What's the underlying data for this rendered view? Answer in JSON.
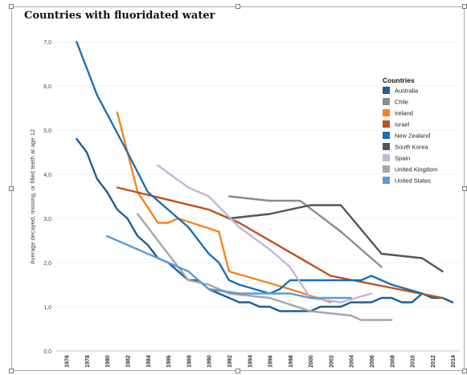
{
  "chart_data": {
    "type": "line",
    "title": "Countries with fluoridated water",
    "ylabel": "Average decayed, missing, or filled teeth at age 12",
    "xlabel": "",
    "xlim": [
      1975,
      2014
    ],
    "ylim": [
      0,
      7
    ],
    "y_ticks": [
      "0,0",
      "1,0",
      "2,0",
      "3,0",
      "4,0",
      "5,0",
      "6,0",
      "7,0"
    ],
    "x_ticks": [
      "1976",
      "1978",
      "1980",
      "1982",
      "1984",
      "1986",
      "1988",
      "1990",
      "1992",
      "1994",
      "1996",
      "1998",
      "2000",
      "2002",
      "2004",
      "2006",
      "2008",
      "2010",
      "2012",
      "2014"
    ],
    "grid": "horizontal",
    "legend": {
      "title": "Countries",
      "placement": "right"
    },
    "series": [
      {
        "name": "Australia",
        "color": "#1f5e98",
        "points": [
          [
            1977,
            4.8
          ],
          [
            1978,
            4.5
          ],
          [
            1979,
            3.9
          ],
          [
            1980,
            3.6
          ],
          [
            1981,
            3.2
          ],
          [
            1982,
            3.0
          ],
          [
            1983,
            2.6
          ],
          [
            1984,
            2.4
          ],
          [
            1985,
            2.1
          ],
          [
            1986,
            2.0
          ],
          [
            1987,
            1.8
          ],
          [
            1988,
            1.6
          ],
          [
            1989,
            1.6
          ],
          [
            1990,
            1.4
          ],
          [
            1991,
            1.3
          ],
          [
            1992,
            1.2
          ],
          [
            1993,
            1.1
          ],
          [
            1994,
            1.1
          ],
          [
            1995,
            1.0
          ],
          [
            1996,
            1.0
          ],
          [
            1997,
            0.9
          ],
          [
            1998,
            0.9
          ],
          [
            1999,
            0.9
          ],
          [
            2000,
            0.9
          ],
          [
            2001,
            1.0
          ],
          [
            2002,
            1.0
          ],
          [
            2003,
            1.0
          ],
          [
            2004,
            1.1
          ],
          [
            2005,
            1.1
          ],
          [
            2006,
            1.1
          ],
          [
            2007,
            1.2
          ],
          [
            2008,
            1.2
          ],
          [
            2009,
            1.1
          ],
          [
            2010,
            1.1
          ],
          [
            2011,
            1.3
          ],
          [
            2012,
            1.2
          ],
          [
            2013,
            1.2
          ],
          [
            2014,
            1.1
          ]
        ]
      },
      {
        "name": "Chile",
        "color": "#8c8c8c",
        "points": [
          [
            1992,
            3.5
          ],
          [
            1996,
            3.4
          ],
          [
            1999,
            3.4
          ],
          [
            2003,
            2.7
          ],
          [
            2007,
            1.9
          ]
        ]
      },
      {
        "name": "Ireland",
        "color": "#f58220",
        "points": [
          [
            1981,
            5.4
          ],
          [
            1983,
            3.6
          ],
          [
            1985,
            2.9
          ],
          [
            1986,
            2.9
          ],
          [
            1987,
            3.0
          ],
          [
            1991,
            2.7
          ],
          [
            1992,
            1.8
          ],
          [
            1998,
            1.4
          ],
          [
            2002,
            1.1
          ]
        ]
      },
      {
        "name": "Israel",
        "color": "#c0501a",
        "points": [
          [
            1981,
            3.7
          ],
          [
            1990,
            3.2
          ],
          [
            1993,
            2.9
          ],
          [
            2002,
            1.7
          ],
          [
            2013,
            1.2
          ]
        ]
      },
      {
        "name": "New Zealand",
        "color": "#1a6fb5",
        "points": [
          [
            1977,
            7.0
          ],
          [
            1979,
            5.8
          ],
          [
            1982,
            4.5
          ],
          [
            1984,
            3.6
          ],
          [
            1986,
            3.2
          ],
          [
            1988,
            2.8
          ],
          [
            1990,
            2.2
          ],
          [
            1991,
            2.0
          ],
          [
            1992,
            1.6
          ],
          [
            1993,
            1.5
          ],
          [
            1996,
            1.3
          ],
          [
            1997,
            1.4
          ],
          [
            1998,
            1.6
          ],
          [
            2000,
            1.6
          ],
          [
            2005,
            1.6
          ],
          [
            2006,
            1.7
          ],
          [
            2008,
            1.5
          ],
          [
            2011,
            1.3
          ]
        ]
      },
      {
        "name": "South Korea",
        "color": "#555555",
        "points": [
          [
            1992,
            3.0
          ],
          [
            1996,
            3.1
          ],
          [
            2000,
            3.3
          ],
          [
            2003,
            3.3
          ],
          [
            2007,
            2.2
          ],
          [
            2011,
            2.1
          ],
          [
            2013,
            1.8
          ]
        ]
      },
      {
        "name": "Spain",
        "color": "#c7b3dc",
        "points": [
          [
            1985,
            4.2
          ],
          [
            1988,
            3.7
          ],
          [
            1990,
            3.5
          ],
          [
            1993,
            2.8
          ],
          [
            1996,
            2.3
          ],
          [
            1998,
            1.9
          ],
          [
            2000,
            1.2
          ],
          [
            2003,
            1.1
          ],
          [
            2006,
            1.3
          ]
        ]
      },
      {
        "name": "United Kingdom",
        "color": "#a6a6a6",
        "points": [
          [
            1983,
            3.1
          ],
          [
            1986,
            2.2
          ],
          [
            1988,
            1.6
          ],
          [
            1990,
            1.5
          ],
          [
            1992,
            1.3
          ],
          [
            1996,
            1.2
          ],
          [
            2000,
            0.9
          ],
          [
            2004,
            0.8
          ],
          [
            2005,
            0.7
          ],
          [
            2008,
            0.7
          ]
        ]
      },
      {
        "name": "United States",
        "color": "#5b9bd5",
        "points": [
          [
            1980,
            2.6
          ],
          [
            1984,
            2.2
          ],
          [
            1988,
            1.8
          ],
          [
            1990,
            1.4
          ],
          [
            1993,
            1.3
          ],
          [
            1998,
            1.3
          ],
          [
            2000,
            1.2
          ],
          [
            2004,
            1.2
          ]
        ]
      }
    ]
  }
}
